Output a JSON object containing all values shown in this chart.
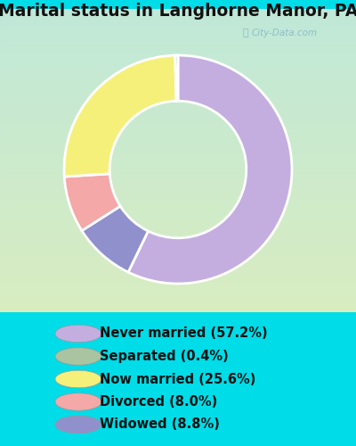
{
  "title": "Marital status in Langhorne Manor, PA",
  "legend_items": [
    {
      "label": "Never married (57.2%)",
      "color": "#c4aee0"
    },
    {
      "label": "Separated (0.4%)",
      "color": "#a8c4a0"
    },
    {
      "label": "Now married (25.6%)",
      "color": "#f5f07a"
    },
    {
      "label": "Divorced (8.0%)",
      "color": "#f4a8a8"
    },
    {
      "label": "Widowed (8.8%)",
      "color": "#9090cc"
    }
  ],
  "wedge_values": [
    57.2,
    8.8,
    8.0,
    25.6,
    0.4
  ],
  "wedge_colors": [
    "#c4aee0",
    "#9090cc",
    "#f4a8a8",
    "#f5f07a",
    "#a8c4a0"
  ],
  "bg_top": "#c0e8d8",
  "bg_bottom": "#d8ecc0",
  "legend_bg": "#00dce8",
  "title_fontsize": 13.5,
  "legend_fontsize": 10.5,
  "watermark": "City-Data.com"
}
